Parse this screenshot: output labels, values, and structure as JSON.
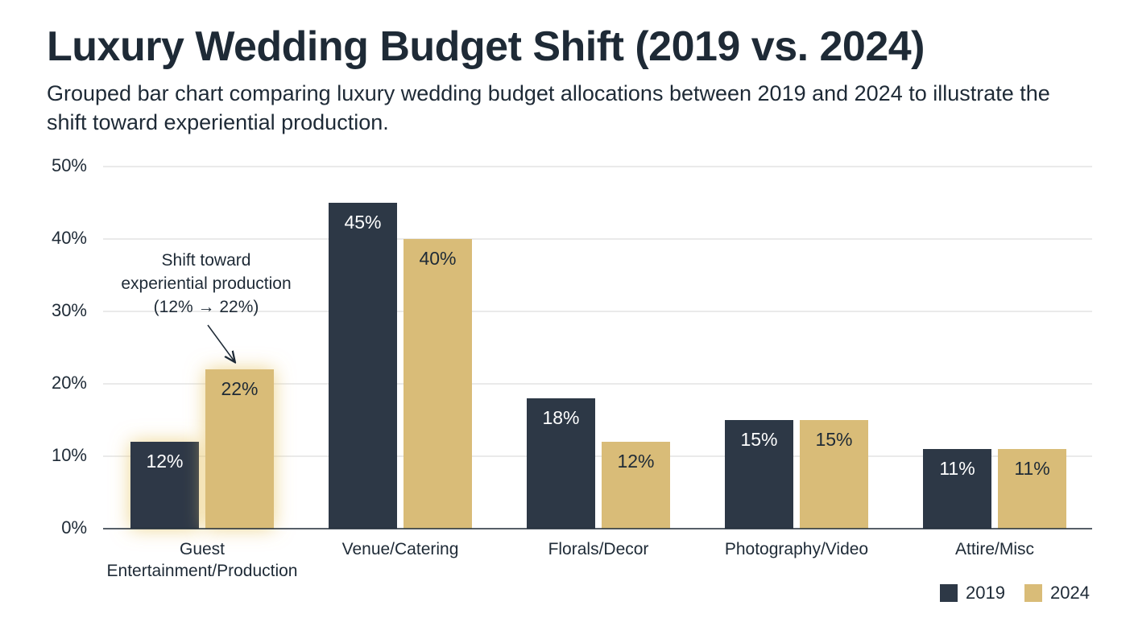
{
  "chart_data": {
    "type": "bar",
    "title": "Luxury Wedding Budget Shift (2019 vs. 2024)",
    "subtitle": "Grouped bar chart comparing luxury wedding budget allocations between 2019 and 2024 to illustrate the shift toward experiential production.",
    "categories": [
      "Guest Entertainment/Production",
      "Venue/Catering",
      "Florals/Decor",
      "Photography/Video",
      "Attire/Misc"
    ],
    "series": [
      {
        "name": "2019",
        "color": "#2d3846",
        "values": [
          12,
          45,
          18,
          15,
          11
        ],
        "value_labels": [
          "12%",
          "45%",
          "18%",
          "15%",
          "11%"
        ]
      },
      {
        "name": "2024",
        "color": "#d9bc78",
        "values": [
          22,
          40,
          12,
          15,
          11
        ],
        "value_labels": [
          "22%",
          "40%",
          "12%",
          "15%",
          "11%"
        ]
      }
    ],
    "ylim": [
      0,
      50
    ],
    "yticks": [
      {
        "value": 0,
        "label": "0%"
      },
      {
        "value": 10,
        "label": "10%"
      },
      {
        "value": 20,
        "label": "20%"
      },
      {
        "value": 30,
        "label": "30%"
      },
      {
        "value": 40,
        "label": "40%"
      },
      {
        "value": 50,
        "label": "50%"
      }
    ],
    "grid": true,
    "legend": "bottom-right",
    "annotation": "Shift toward\nexperiential production\n(12% → 22%)"
  }
}
